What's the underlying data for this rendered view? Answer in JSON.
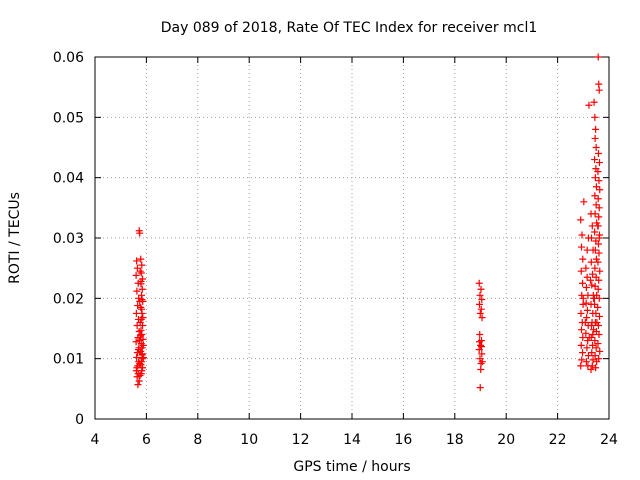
{
  "chart_data": {
    "type": "scatter",
    "title": "Day 089 of 2018, Rate Of TEC Index for receiver mcl1",
    "xlabel": "GPS time / hours",
    "ylabel": "ROTI / TECUs",
    "xlim": [
      4,
      24
    ],
    "ylim": [
      0,
      0.06
    ],
    "xticks": [
      "4",
      "6",
      "8",
      "10",
      "12",
      "14",
      "16",
      "18",
      "20",
      "22",
      "24"
    ],
    "yticks": [
      "0",
      "0.01",
      "0.02",
      "0.03",
      "0.04",
      "0.05",
      "0.06"
    ],
    "grid": true,
    "marker": "+",
    "color": "#ff0000",
    "points": [
      [
        5.62,
        0.0262
      ],
      [
        5.65,
        0.025
      ],
      [
        5.6,
        0.0238
      ],
      [
        5.68,
        0.0225
      ],
      [
        5.63,
        0.0212
      ],
      [
        5.7,
        0.02
      ],
      [
        5.66,
        0.0188
      ],
      [
        5.61,
        0.0175
      ],
      [
        5.69,
        0.0165
      ],
      [
        5.64,
        0.0155
      ],
      [
        5.72,
        0.0145
      ],
      [
        5.67,
        0.0135
      ],
      [
        5.6,
        0.0128
      ],
      [
        5.71,
        0.0118
      ],
      [
        5.65,
        0.011
      ],
      [
        5.62,
        0.0102
      ],
      [
        5.7,
        0.0095
      ],
      [
        5.66,
        0.0088
      ],
      [
        5.61,
        0.008
      ],
      [
        5.68,
        0.0075
      ],
      [
        5.64,
        0.007
      ],
      [
        5.72,
        0.0063
      ],
      [
        5.67,
        0.0057
      ],
      [
        5.63,
        0.0085
      ],
      [
        5.69,
        0.0115
      ],
      [
        5.75,
        0.0072
      ],
      [
        5.74,
        0.0092
      ],
      [
        5.73,
        0.013
      ],
      [
        5.76,
        0.016
      ],
      [
        5.74,
        0.0195
      ],
      [
        5.72,
        0.0312
      ],
      [
        5.74,
        0.0308
      ],
      [
        5.78,
        0.0265
      ],
      [
        5.82,
        0.0255
      ],
      [
        5.8,
        0.0242
      ],
      [
        5.85,
        0.0232
      ],
      [
        5.79,
        0.0224
      ],
      [
        5.84,
        0.0215
      ],
      [
        5.81,
        0.0205
      ],
      [
        5.86,
        0.0195
      ],
      [
        5.78,
        0.0185
      ],
      [
        5.83,
        0.0175
      ],
      [
        5.8,
        0.0165
      ],
      [
        5.85,
        0.0155
      ],
      [
        5.79,
        0.0147
      ],
      [
        5.82,
        0.014
      ],
      [
        5.87,
        0.0132
      ],
      [
        5.8,
        0.0125
      ],
      [
        5.84,
        0.0118
      ],
      [
        5.78,
        0.0112
      ],
      [
        5.83,
        0.0106
      ],
      [
        5.86,
        0.01
      ],
      [
        5.81,
        0.0095
      ],
      [
        5.79,
        0.009
      ],
      [
        5.85,
        0.0085
      ],
      [
        5.82,
        0.008
      ],
      [
        5.8,
        0.0075
      ],
      [
        5.84,
        0.0108
      ],
      [
        5.88,
        0.0122
      ],
      [
        5.77,
        0.0138
      ],
      [
        5.86,
        0.0168
      ],
      [
        5.81,
        0.0182
      ],
      [
        5.83,
        0.0198
      ],
      [
        5.79,
        0.0228
      ],
      [
        5.76,
        0.0245
      ],
      [
        5.88,
        0.0102
      ],
      [
        18.95,
        0.0225
      ],
      [
        19.02,
        0.0215
      ],
      [
        18.98,
        0.0205
      ],
      [
        19.05,
        0.0198
      ],
      [
        18.96,
        0.019
      ],
      [
        19.03,
        0.0182
      ],
      [
        18.99,
        0.0175
      ],
      [
        19.06,
        0.0168
      ],
      [
        18.97,
        0.014
      ],
      [
        19.04,
        0.013
      ],
      [
        19.0,
        0.0122
      ],
      [
        18.95,
        0.0115
      ],
      [
        19.05,
        0.0108
      ],
      [
        18.98,
        0.01
      ],
      [
        19.02,
        0.0092
      ],
      [
        19.01,
        0.0082
      ],
      [
        18.99,
        0.0052
      ],
      [
        19.04,
        0.012
      ],
      [
        18.96,
        0.0128
      ],
      [
        19.07,
        0.0095
      ],
      [
        22.9,
        0.033
      ],
      [
        22.95,
        0.0305
      ],
      [
        22.93,
        0.0285
      ],
      [
        22.98,
        0.0265
      ],
      [
        22.92,
        0.0245
      ],
      [
        22.97,
        0.0225
      ],
      [
        22.94,
        0.0205
      ],
      [
        22.99,
        0.019
      ],
      [
        22.91,
        0.0175
      ],
      [
        22.96,
        0.016
      ],
      [
        22.93,
        0.0148
      ],
      [
        22.98,
        0.0135
      ],
      [
        22.92,
        0.0122
      ],
      [
        22.97,
        0.011
      ],
      [
        22.94,
        0.0098
      ],
      [
        22.9,
        0.0088
      ],
      [
        23.0,
        0.02
      ],
      [
        23.02,
        0.036
      ],
      [
        23.1,
        0.025
      ],
      [
        23.15,
        0.0235
      ],
      [
        23.12,
        0.0218
      ],
      [
        23.18,
        0.0205
      ],
      [
        23.11,
        0.0192
      ],
      [
        23.16,
        0.018
      ],
      [
        23.13,
        0.0168
      ],
      [
        23.19,
        0.0155
      ],
      [
        23.1,
        0.0142
      ],
      [
        23.17,
        0.013
      ],
      [
        23.14,
        0.0118
      ],
      [
        23.2,
        0.0105
      ],
      [
        23.12,
        0.0095
      ],
      [
        23.18,
        0.0088
      ],
      [
        23.15,
        0.028
      ],
      [
        23.22,
        0.052
      ],
      [
        23.2,
        0.03
      ],
      [
        23.08,
        0.016
      ],
      [
        23.23,
        0.0135
      ],
      [
        23.3,
        0.034
      ],
      [
        23.35,
        0.032
      ],
      [
        23.32,
        0.03
      ],
      [
        23.38,
        0.028
      ],
      [
        23.31,
        0.026
      ],
      [
        23.36,
        0.024
      ],
      [
        23.33,
        0.0222
      ],
      [
        23.39,
        0.0205
      ],
      [
        23.3,
        0.019
      ],
      [
        23.37,
        0.0175
      ],
      [
        23.34,
        0.016
      ],
      [
        23.4,
        0.0148
      ],
      [
        23.31,
        0.0135
      ],
      [
        23.36,
        0.0122
      ],
      [
        23.33,
        0.011
      ],
      [
        23.38,
        0.0098
      ],
      [
        23.35,
        0.0088
      ],
      [
        23.3,
        0.0082
      ],
      [
        23.4,
        0.02
      ],
      [
        23.32,
        0.0155
      ],
      [
        23.28,
        0.023
      ],
      [
        23.37,
        0.014
      ],
      [
        23.45,
        0.05
      ],
      [
        23.48,
        0.048
      ],
      [
        23.46,
        0.0465
      ],
      [
        23.5,
        0.045
      ],
      [
        23.44,
        0.043
      ],
      [
        23.49,
        0.0415
      ],
      [
        23.47,
        0.04
      ],
      [
        23.51,
        0.0385
      ],
      [
        23.45,
        0.037
      ],
      [
        23.5,
        0.0355
      ],
      [
        23.46,
        0.034
      ],
      [
        23.52,
        0.0325
      ],
      [
        23.44,
        0.031
      ],
      [
        23.49,
        0.0295
      ],
      [
        23.47,
        0.028
      ],
      [
        23.51,
        0.0265
      ],
      [
        23.45,
        0.025
      ],
      [
        23.5,
        0.0235
      ],
      [
        23.46,
        0.022
      ],
      [
        23.52,
        0.0205
      ],
      [
        23.44,
        0.019
      ],
      [
        23.49,
        0.0175
      ],
      [
        23.47,
        0.016
      ],
      [
        23.51,
        0.0145
      ],
      [
        23.45,
        0.013
      ],
      [
        23.5,
        0.0118
      ],
      [
        23.46,
        0.0105
      ],
      [
        23.52,
        0.0095
      ],
      [
        23.48,
        0.0085
      ],
      [
        23.42,
        0.0525
      ],
      [
        23.53,
        0.016
      ],
      [
        23.43,
        0.02
      ],
      [
        23.58,
        0.06
      ],
      [
        23.6,
        0.0555
      ],
      [
        23.62,
        0.0545
      ],
      [
        23.59,
        0.044
      ],
      [
        23.63,
        0.0425
      ],
      [
        23.57,
        0.041
      ],
      [
        23.61,
        0.0395
      ],
      [
        23.64,
        0.038
      ],
      [
        23.58,
        0.0365
      ],
      [
        23.62,
        0.035
      ],
      [
        23.6,
        0.0335
      ],
      [
        23.56,
        0.032
      ],
      [
        23.63,
        0.0305
      ],
      [
        23.59,
        0.029
      ],
      [
        23.61,
        0.0275
      ],
      [
        23.57,
        0.026
      ],
      [
        23.64,
        0.0245
      ],
      [
        23.6,
        0.023
      ],
      [
        23.58,
        0.0215
      ],
      [
        23.62,
        0.02
      ],
      [
        23.56,
        0.0185
      ],
      [
        23.63,
        0.017
      ],
      [
        23.59,
        0.0155
      ],
      [
        23.61,
        0.014
      ],
      [
        23.57,
        0.0125
      ],
      [
        23.64,
        0.0112
      ],
      [
        23.6,
        0.01
      ],
      [
        23.62,
        0.03
      ],
      [
        23.58,
        0.032
      ]
    ]
  }
}
